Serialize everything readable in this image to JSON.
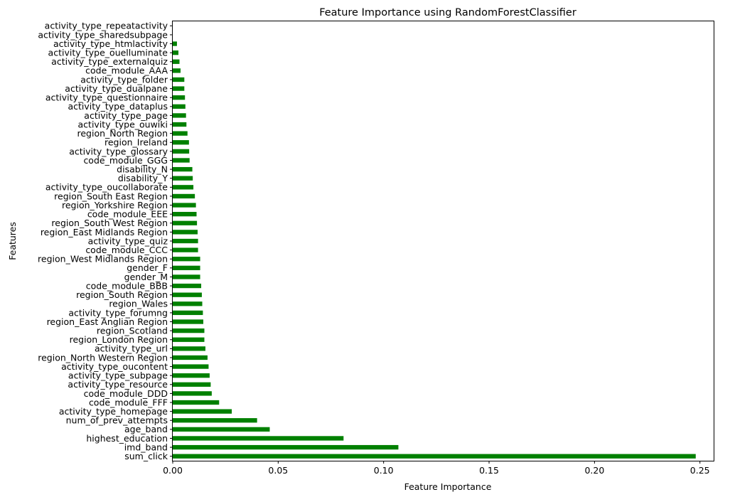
{
  "chart_data": {
    "type": "bar",
    "orientation": "horizontal",
    "title": "Feature Importance using RandomForestClassifier",
    "xlabel": "Feature Importance",
    "ylabel": "Features",
    "xlim": [
      0,
      0.2565
    ],
    "xticks": [
      0.0,
      0.05,
      0.1,
      0.15,
      0.2,
      0.25
    ],
    "xtick_labels": [
      "0.00",
      "0.05",
      "0.10",
      "0.15",
      "0.20",
      "0.25"
    ],
    "bar_color": "#008000",
    "grid": false,
    "categories": [
      "sum_click",
      "imd_band",
      "highest_education",
      "age_band",
      "num_of_prev_attempts",
      "activity_type_homepage",
      "code_module_FFF",
      "code_module_DDD",
      "activity_type_resource",
      "activity_type_subpage",
      "activity_type_oucontent",
      "region_North Western Region",
      "activity_type_url",
      "region_London Region",
      "region_Scotland",
      "region_East Anglian Region",
      "activity_type_forumng",
      "region_Wales",
      "region_South Region",
      "code_module_BBB",
      "gender_M",
      "gender_F",
      "region_West Midlands Region",
      "code_module_CCC",
      "activity_type_quiz",
      "region_East Midlands Region",
      "region_South West Region",
      "code_module_EEE",
      "region_Yorkshire Region",
      "region_South East Region",
      "activity_type_oucollaborate",
      "disability_Y",
      "disability_N",
      "code_module_GGG",
      "activity_type_glossary",
      "region_Ireland",
      "region_North Region",
      "activity_type_ouwiki",
      "activity_type_page",
      "activity_type_dataplus",
      "activity_type_questionnaire",
      "activity_type_dualpane",
      "activity_type_folder",
      "code_module_AAA",
      "activity_type_externalquiz",
      "activity_type_ouelluminate",
      "activity_type_htmlactivity",
      "activity_type_sharedsubpage",
      "activity_type_repeatactivity"
    ],
    "values": [
      0.248,
      0.107,
      0.081,
      0.046,
      0.04,
      0.028,
      0.022,
      0.0185,
      0.018,
      0.0175,
      0.017,
      0.0165,
      0.0155,
      0.015,
      0.015,
      0.0145,
      0.0143,
      0.014,
      0.0138,
      0.0135,
      0.013,
      0.013,
      0.013,
      0.012,
      0.012,
      0.0118,
      0.0115,
      0.0113,
      0.011,
      0.0105,
      0.0098,
      0.0095,
      0.0093,
      0.008,
      0.0078,
      0.0077,
      0.007,
      0.0065,
      0.0063,
      0.006,
      0.0058,
      0.0055,
      0.0055,
      0.0037,
      0.0032,
      0.0027,
      0.002,
      0.0,
      0.0
    ]
  }
}
